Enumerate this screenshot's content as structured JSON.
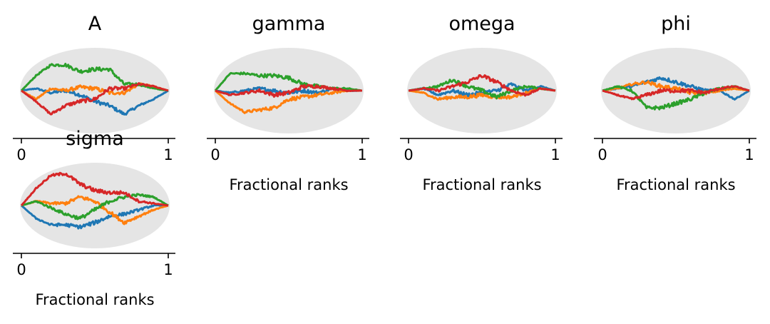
{
  "figure": {
    "subplots": [
      {
        "title": "A",
        "xlabel": "",
        "xticks": [
          "0",
          "1"
        ]
      },
      {
        "title": "gamma",
        "xlabel": "Fractional ranks",
        "xticks": [
          "0",
          "1"
        ]
      },
      {
        "title": "omega",
        "xlabel": "Fractional ranks",
        "xticks": [
          "0",
          "1"
        ]
      },
      {
        "title": "phi",
        "xlabel": "Fractional ranks",
        "xticks": [
          "0",
          "1"
        ]
      },
      {
        "title": "sigma",
        "xlabel": "Fractional ranks",
        "xticks": [
          "0",
          "1"
        ]
      }
    ]
  },
  "colors": {
    "band": "#e5e5e5",
    "series": [
      "#1f77b4",
      "#ff7f0e",
      "#2ca02c",
      "#d62728"
    ]
  },
  "chart_data": [
    {
      "type": "line",
      "title": "A",
      "xlabel": "",
      "xlim": [
        0,
        1
      ],
      "ylim": [
        -1,
        1
      ],
      "x": [
        0,
        0.1,
        0.2,
        0.3,
        0.4,
        0.5,
        0.6,
        0.7,
        0.8,
        0.9,
        1
      ],
      "series": [
        {
          "values": [
            0,
            0.05,
            -0.05,
            0,
            -0.1,
            -0.25,
            -0.35,
            -0.55,
            -0.35,
            -0.2,
            0
          ]
        },
        {
          "values": [
            0,
            -0.2,
            0.05,
            0,
            0.08,
            0.05,
            -0.05,
            -0.05,
            0.15,
            0.1,
            0
          ]
        },
        {
          "values": [
            0,
            0.35,
            0.6,
            0.6,
            0.45,
            0.5,
            0.5,
            0.15,
            0.15,
            0.05,
            0
          ]
        },
        {
          "values": [
            0,
            -0.25,
            -0.55,
            -0.35,
            -0.25,
            -0.2,
            0.05,
            0.05,
            0.15,
            0.1,
            0
          ]
        }
      ]
    },
    {
      "type": "line",
      "title": "gamma",
      "xlabel": "Fractional ranks",
      "xlim": [
        0,
        1
      ],
      "ylim": [
        -1,
        1
      ],
      "x": [
        0,
        0.1,
        0.2,
        0.3,
        0.4,
        0.5,
        0.6,
        0.7,
        0.8,
        0.9,
        1
      ],
      "series": [
        {
          "values": [
            0,
            -0.05,
            0,
            0.05,
            0,
            -0.05,
            0,
            -0.05,
            0.05,
            0,
            0
          ]
        },
        {
          "values": [
            0,
            -0.3,
            -0.5,
            -0.45,
            -0.4,
            -0.2,
            -0.15,
            -0.1,
            -0.05,
            0,
            0
          ]
        },
        {
          "values": [
            0,
            0.4,
            0.4,
            0.35,
            0.35,
            0.3,
            0.15,
            0.1,
            0.05,
            0.05,
            0
          ]
        },
        {
          "values": [
            0,
            -0.1,
            -0.05,
            0,
            -0.1,
            -0.05,
            0.1,
            0.1,
            0.05,
            0,
            0
          ]
        }
      ]
    },
    {
      "type": "line",
      "title": "omega",
      "xlabel": "Fractional ranks",
      "xlim": [
        0,
        1
      ],
      "ylim": [
        -1,
        1
      ],
      "x": [
        0,
        0.1,
        0.2,
        0.3,
        0.4,
        0.5,
        0.6,
        0.7,
        0.8,
        0.9,
        1
      ],
      "series": [
        {
          "values": [
            0,
            0.05,
            -0.1,
            0,
            -0.1,
            -0.05,
            0,
            0.15,
            0,
            0.1,
            0
          ]
        },
        {
          "values": [
            0,
            -0.05,
            -0.2,
            -0.15,
            -0.15,
            -0.1,
            -0.15,
            -0.15,
            -0.05,
            0.05,
            0
          ]
        },
        {
          "values": [
            0,
            0.05,
            0.1,
            0.25,
            0.1,
            0,
            -0.15,
            0,
            0.1,
            0.05,
            0
          ]
        },
        {
          "values": [
            0,
            0.05,
            0,
            0.1,
            0.2,
            0.35,
            0.2,
            0,
            -0.1,
            0.05,
            0
          ]
        }
      ]
    },
    {
      "type": "line",
      "title": "phi",
      "xlabel": "Fractional ranks",
      "xlim": [
        0,
        1
      ],
      "ylim": [
        -1,
        1
      ],
      "x": [
        0,
        0.1,
        0.2,
        0.3,
        0.4,
        0.5,
        0.6,
        0.7,
        0.8,
        0.9,
        1
      ],
      "series": [
        {
          "values": [
            0,
            0.05,
            0.1,
            0.2,
            0.3,
            0.2,
            0.1,
            0,
            0,
            -0.2,
            0
          ]
        },
        {
          "values": [
            0,
            0.05,
            0.15,
            0.2,
            0.1,
            0.05,
            -0.05,
            -0.05,
            0,
            0.05,
            0
          ]
        },
        {
          "values": [
            0,
            0.1,
            0,
            -0.4,
            -0.4,
            -0.3,
            -0.2,
            -0.05,
            0.05,
            0.1,
            0
          ]
        },
        {
          "values": [
            0,
            -0.1,
            -0.2,
            -0.1,
            0,
            0,
            0,
            -0.05,
            0.05,
            0.1,
            0
          ]
        }
      ]
    },
    {
      "type": "line",
      "title": "sigma",
      "xlabel": "Fractional ranks",
      "xlim": [
        0,
        1
      ],
      "ylim": [
        -1,
        1
      ],
      "x": [
        0,
        0.1,
        0.2,
        0.3,
        0.4,
        0.5,
        0.6,
        0.7,
        0.8,
        0.9,
        1
      ],
      "series": [
        {
          "values": [
            0,
            -0.3,
            -0.45,
            -0.45,
            -0.5,
            -0.4,
            -0.25,
            -0.2,
            -0.1,
            0,
            0
          ]
        },
        {
          "values": [
            0,
            0.1,
            0.05,
            0.05,
            0.2,
            0.1,
            -0.15,
            -0.4,
            -0.25,
            -0.1,
            0
          ]
        },
        {
          "values": [
            0,
            0.1,
            -0.05,
            -0.2,
            -0.3,
            -0.1,
            0.1,
            0.2,
            0.25,
            0.2,
            0
          ]
        },
        {
          "values": [
            0,
            0.4,
            0.7,
            0.75,
            0.5,
            0.35,
            0.3,
            0.3,
            0.1,
            0.05,
            0
          ]
        }
      ]
    }
  ]
}
